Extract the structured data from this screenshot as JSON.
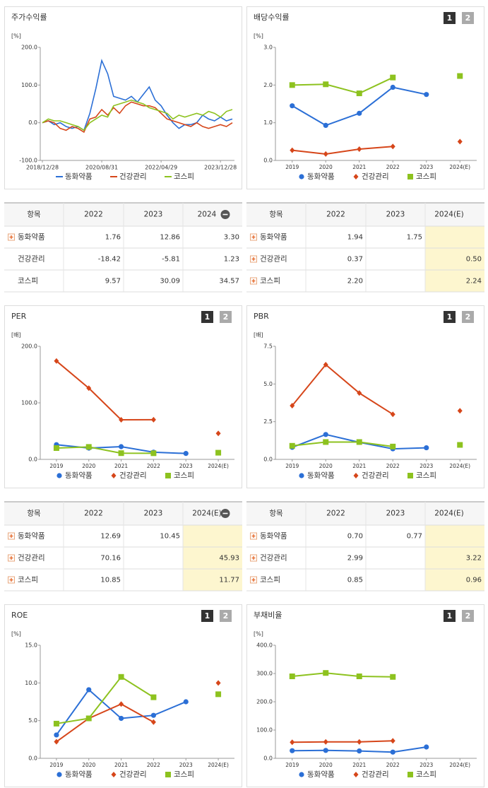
{
  "chart_data": [
    {
      "type": "line",
      "title": "주가수익률",
      "unit_label": "[%]",
      "categories": [
        "2018/12/28",
        null,
        null,
        null,
        null,
        null,
        null,
        null,
        null,
        null,
        "2020/08/31",
        null,
        null,
        null,
        null,
        null,
        null,
        null,
        null,
        null,
        "2022/04/29",
        null,
        null,
        null,
        null,
        null,
        null,
        null,
        null,
        null,
        "2023/12/28",
        null,
        null
      ],
      "series": [
        {
          "name": "동화약품",
          "color": "#2b6fd6",
          "marker": "circle",
          "values": [
            0,
            5,
            -5,
            0,
            -10,
            -15,
            -10,
            -20,
            25,
            90,
            165,
            130,
            70,
            65,
            60,
            70,
            55,
            75,
            95,
            60,
            45,
            20,
            0,
            -15,
            -5,
            -5,
            0,
            20,
            10,
            5,
            15,
            5,
            10
          ]
        },
        {
          "name": "건강관리",
          "color": "#d6461a",
          "marker": "diamond",
          "values": [
            0,
            5,
            0,
            -15,
            -20,
            -10,
            -15,
            -25,
            10,
            15,
            35,
            20,
            40,
            25,
            45,
            55,
            50,
            45,
            45,
            40,
            25,
            10,
            5,
            0,
            -5,
            -10,
            0,
            -10,
            -15,
            -10,
            -5,
            -10,
            0
          ]
        },
        {
          "name": "코스피",
          "color": "#8dc21f",
          "marker": "square",
          "values": [
            0,
            10,
            5,
            5,
            0,
            -5,
            -10,
            -20,
            0,
            10,
            20,
            15,
            45,
            50,
            55,
            60,
            55,
            50,
            40,
            35,
            30,
            25,
            10,
            20,
            15,
            20,
            25,
            20,
            30,
            25,
            15,
            30,
            35
          ]
        }
      ],
      "point_markers": false,
      "ylim": [
        -100,
        200
      ],
      "yticks": [
        {
          "value": -100,
          "label": "-100.0"
        },
        {
          "value": 0,
          "label": "0.0"
        },
        {
          "value": 100,
          "label": "100.0"
        },
        {
          "value": 200,
          "label": "200.0"
        }
      ]
    },
    {
      "type": "line",
      "title": "배당수익률",
      "unit_label": "[%]",
      "buttons": [
        "1",
        "2"
      ],
      "categories": [
        "2019",
        "2020",
        "2021",
        "2022",
        "2023",
        "2024(E)"
      ],
      "series": [
        {
          "name": "동화약품",
          "color": "#2b6fd6",
          "marker": "circle",
          "values": [
            1.45,
            0.93,
            1.25,
            1.94,
            1.75,
            null
          ]
        },
        {
          "name": "건강관리",
          "color": "#d6461a",
          "marker": "diamond",
          "values": [
            0.27,
            0.17,
            0.3,
            0.37,
            null,
            0.5
          ]
        },
        {
          "name": "코스피",
          "color": "#8dc21f",
          "marker": "square",
          "values": [
            2.0,
            2.02,
            1.78,
            2.2,
            null,
            2.24
          ]
        }
      ],
      "point_markers": true,
      "ylim": [
        0,
        3
      ],
      "yticks": [
        {
          "value": 0,
          "label": "0.0"
        },
        {
          "value": 1,
          "label": "1.0"
        },
        {
          "value": 2,
          "label": "2.0"
        },
        {
          "value": 3,
          "label": "3.0"
        }
      ]
    },
    {
      "type": "line",
      "title": "PER",
      "unit_label": "[배]",
      "buttons": [
        "1",
        "2"
      ],
      "categories": [
        "2019",
        "2020",
        "2021",
        "2022",
        "2023",
        "2024(E)"
      ],
      "series": [
        {
          "name": "동화약품",
          "color": "#2b6fd6",
          "marker": "circle",
          "values": [
            26,
            20,
            22.5,
            12.69,
            10.45,
            null
          ]
        },
        {
          "name": "건강관리",
          "color": "#d6461a",
          "marker": "diamond",
          "values": [
            174,
            126,
            70,
            70.16,
            null,
            45.93
          ]
        },
        {
          "name": "코스피",
          "color": "#8dc21f",
          "marker": "square",
          "values": [
            20,
            22,
            11,
            10.85,
            null,
            11.77
          ]
        }
      ],
      "point_markers": true,
      "ylim": [
        0,
        200
      ],
      "yticks": [
        {
          "value": 0,
          "label": "0.0"
        },
        {
          "value": 100,
          "label": "100.0"
        },
        {
          "value": 200,
          "label": "200.0"
        }
      ]
    },
    {
      "type": "line",
      "title": "PBR",
      "unit_label": "[배]",
      "buttons": [
        "1",
        "2"
      ],
      "categories": [
        "2019",
        "2020",
        "2021",
        "2022",
        "2023",
        "2024(E)"
      ],
      "series": [
        {
          "name": "동화약품",
          "color": "#2b6fd6",
          "marker": "circle",
          "values": [
            0.8,
            1.65,
            1.13,
            0.7,
            0.77,
            null
          ]
        },
        {
          "name": "건강관리",
          "color": "#d6461a",
          "marker": "diamond",
          "values": [
            3.56,
            6.28,
            4.4,
            2.99,
            null,
            3.22
          ]
        },
        {
          "name": "코스피",
          "color": "#8dc21f",
          "marker": "square",
          "values": [
            0.9,
            1.15,
            1.15,
            0.85,
            null,
            0.96
          ]
        }
      ],
      "point_markers": true,
      "ylim": [
        0,
        7.5
      ],
      "yticks": [
        {
          "value": 0,
          "label": "0.0"
        },
        2.5,
        {
          "value": 5,
          "label": "5.0"
        },
        7.5
      ]
    },
    {
      "type": "line",
      "title": "ROE",
      "unit_label": "[%]",
      "buttons": [
        "1",
        "2"
      ],
      "categories": [
        "2019",
        "2020",
        "2021",
        "2022",
        "2023",
        "2024(E)"
      ],
      "series": [
        {
          "name": "동화약품",
          "color": "#2b6fd6",
          "marker": "circle",
          "values": [
            3.1,
            9.1,
            5.3,
            5.7,
            7.5,
            null
          ]
        },
        {
          "name": "건강관리",
          "color": "#d6461a",
          "marker": "diamond",
          "values": [
            2.2,
            5.3,
            7.2,
            4.8,
            null,
            10.0
          ]
        },
        {
          "name": "코스피",
          "color": "#8dc21f",
          "marker": "square",
          "values": [
            4.6,
            5.3,
            10.8,
            8.1,
            null,
            8.5
          ]
        }
      ],
      "point_markers": true,
      "ylim": [
        0,
        15
      ],
      "yticks": [
        {
          "value": 0,
          "label": "0.0"
        },
        {
          "value": 5,
          "label": "5.0"
        },
        {
          "value": 10,
          "label": "10.0"
        },
        {
          "value": 15,
          "label": "15.0"
        }
      ]
    },
    {
      "type": "line",
      "title": "부채비율",
      "unit_label": "[%]",
      "buttons": [
        "1",
        "2"
      ],
      "categories": [
        "2019",
        "2020",
        "2021",
        "2022",
        "2023",
        "2024(E)"
      ],
      "series": [
        {
          "name": "동화약품",
          "color": "#2b6fd6",
          "marker": "circle",
          "values": [
            27,
            28,
            26,
            22,
            40,
            null
          ]
        },
        {
          "name": "건강관리",
          "color": "#d6461a",
          "marker": "diamond",
          "values": [
            57,
            58,
            58,
            62,
            null,
            null
          ]
        },
        {
          "name": "코스피",
          "color": "#8dc21f",
          "marker": "square",
          "values": [
            290,
            302,
            290,
            288,
            null,
            null
          ]
        }
      ],
      "point_markers": true,
      "ylim": [
        0,
        400
      ],
      "yticks": [
        {
          "value": 0,
          "label": "0.0"
        },
        {
          "value": 100,
          "label": "100.0"
        },
        {
          "value": 200,
          "label": "200.0"
        },
        {
          "value": 300,
          "label": "300.0"
        },
        {
          "value": 400,
          "label": "400.0"
        }
      ]
    }
  ],
  "tables": [
    {
      "header": [
        "항목",
        "2022",
        "2023",
        "2024"
      ],
      "collapse_icon": true,
      "highlight_last": false,
      "rows": [
        {
          "name": "동화약품",
          "icon": true,
          "cells": [
            "1.76",
            "12.86",
            "3.30"
          ]
        },
        {
          "name": "건강관리",
          "icon": false,
          "cells": [
            "-18.42",
            "-5.81",
            "1.23"
          ]
        },
        {
          "name": "코스피",
          "icon": false,
          "cells": [
            "9.57",
            "30.09",
            "34.57"
          ]
        }
      ]
    },
    {
      "header": [
        "항목",
        "2022",
        "2023",
        "2024(E)"
      ],
      "collapse_icon": false,
      "highlight_last": true,
      "rows": [
        {
          "name": "동화약품",
          "icon": true,
          "cells": [
            "1.94",
            "1.75",
            null
          ]
        },
        {
          "name": "건강관리",
          "icon": true,
          "cells": [
            "0.37",
            null,
            "0.50"
          ]
        },
        {
          "name": "코스피",
          "icon": true,
          "cells": [
            "2.20",
            null,
            "2.24"
          ]
        }
      ]
    },
    {
      "header": [
        "항목",
        "2022",
        "2023",
        "2024(E)"
      ],
      "collapse_icon": true,
      "highlight_last": true,
      "rows": [
        {
          "name": "동화약품",
          "icon": true,
          "cells": [
            "12.69",
            "10.45",
            null
          ]
        },
        {
          "name": "건강관리",
          "icon": true,
          "cells": [
            "70.16",
            null,
            "45.93"
          ]
        },
        {
          "name": "코스피",
          "icon": true,
          "cells": [
            "10.85",
            null,
            "11.77"
          ]
        }
      ]
    },
    {
      "header": [
        "항목",
        "2022",
        "2023",
        "2024(E)"
      ],
      "collapse_icon": false,
      "highlight_last": true,
      "rows": [
        {
          "name": "동화약품",
          "icon": true,
          "cells": [
            "0.70",
            "0.77",
            null
          ]
        },
        {
          "name": "건강관리",
          "icon": true,
          "cells": [
            "2.99",
            null,
            "3.22"
          ]
        },
        {
          "name": "코스피",
          "icon": true,
          "cells": [
            "0.85",
            null,
            "0.96"
          ]
        }
      ]
    }
  ]
}
